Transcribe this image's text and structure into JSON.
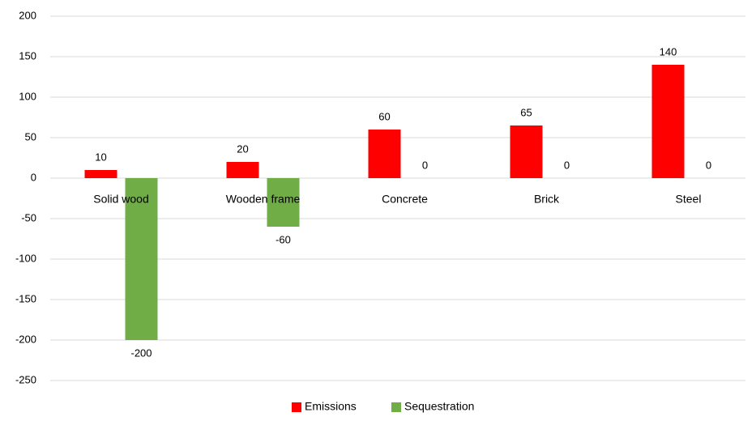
{
  "chart_data": {
    "type": "bar",
    "categories": [
      "Solid wood",
      "Wooden frame",
      "Concrete",
      "Brick",
      "Steel"
    ],
    "series": [
      {
        "name": "Emissions",
        "color": "#ff0000",
        "values": [
          10,
          20,
          60,
          65,
          140
        ]
      },
      {
        "name": "Sequestration",
        "color": "#70ad47",
        "values": [
          -200,
          -60,
          0,
          0,
          0
        ]
      }
    ],
    "ylim": [
      -250,
      200
    ],
    "yticks": [
      -250,
      -200,
      -150,
      -100,
      -50,
      0,
      50,
      100,
      150,
      200
    ],
    "grid": true,
    "legend": "bottom"
  }
}
